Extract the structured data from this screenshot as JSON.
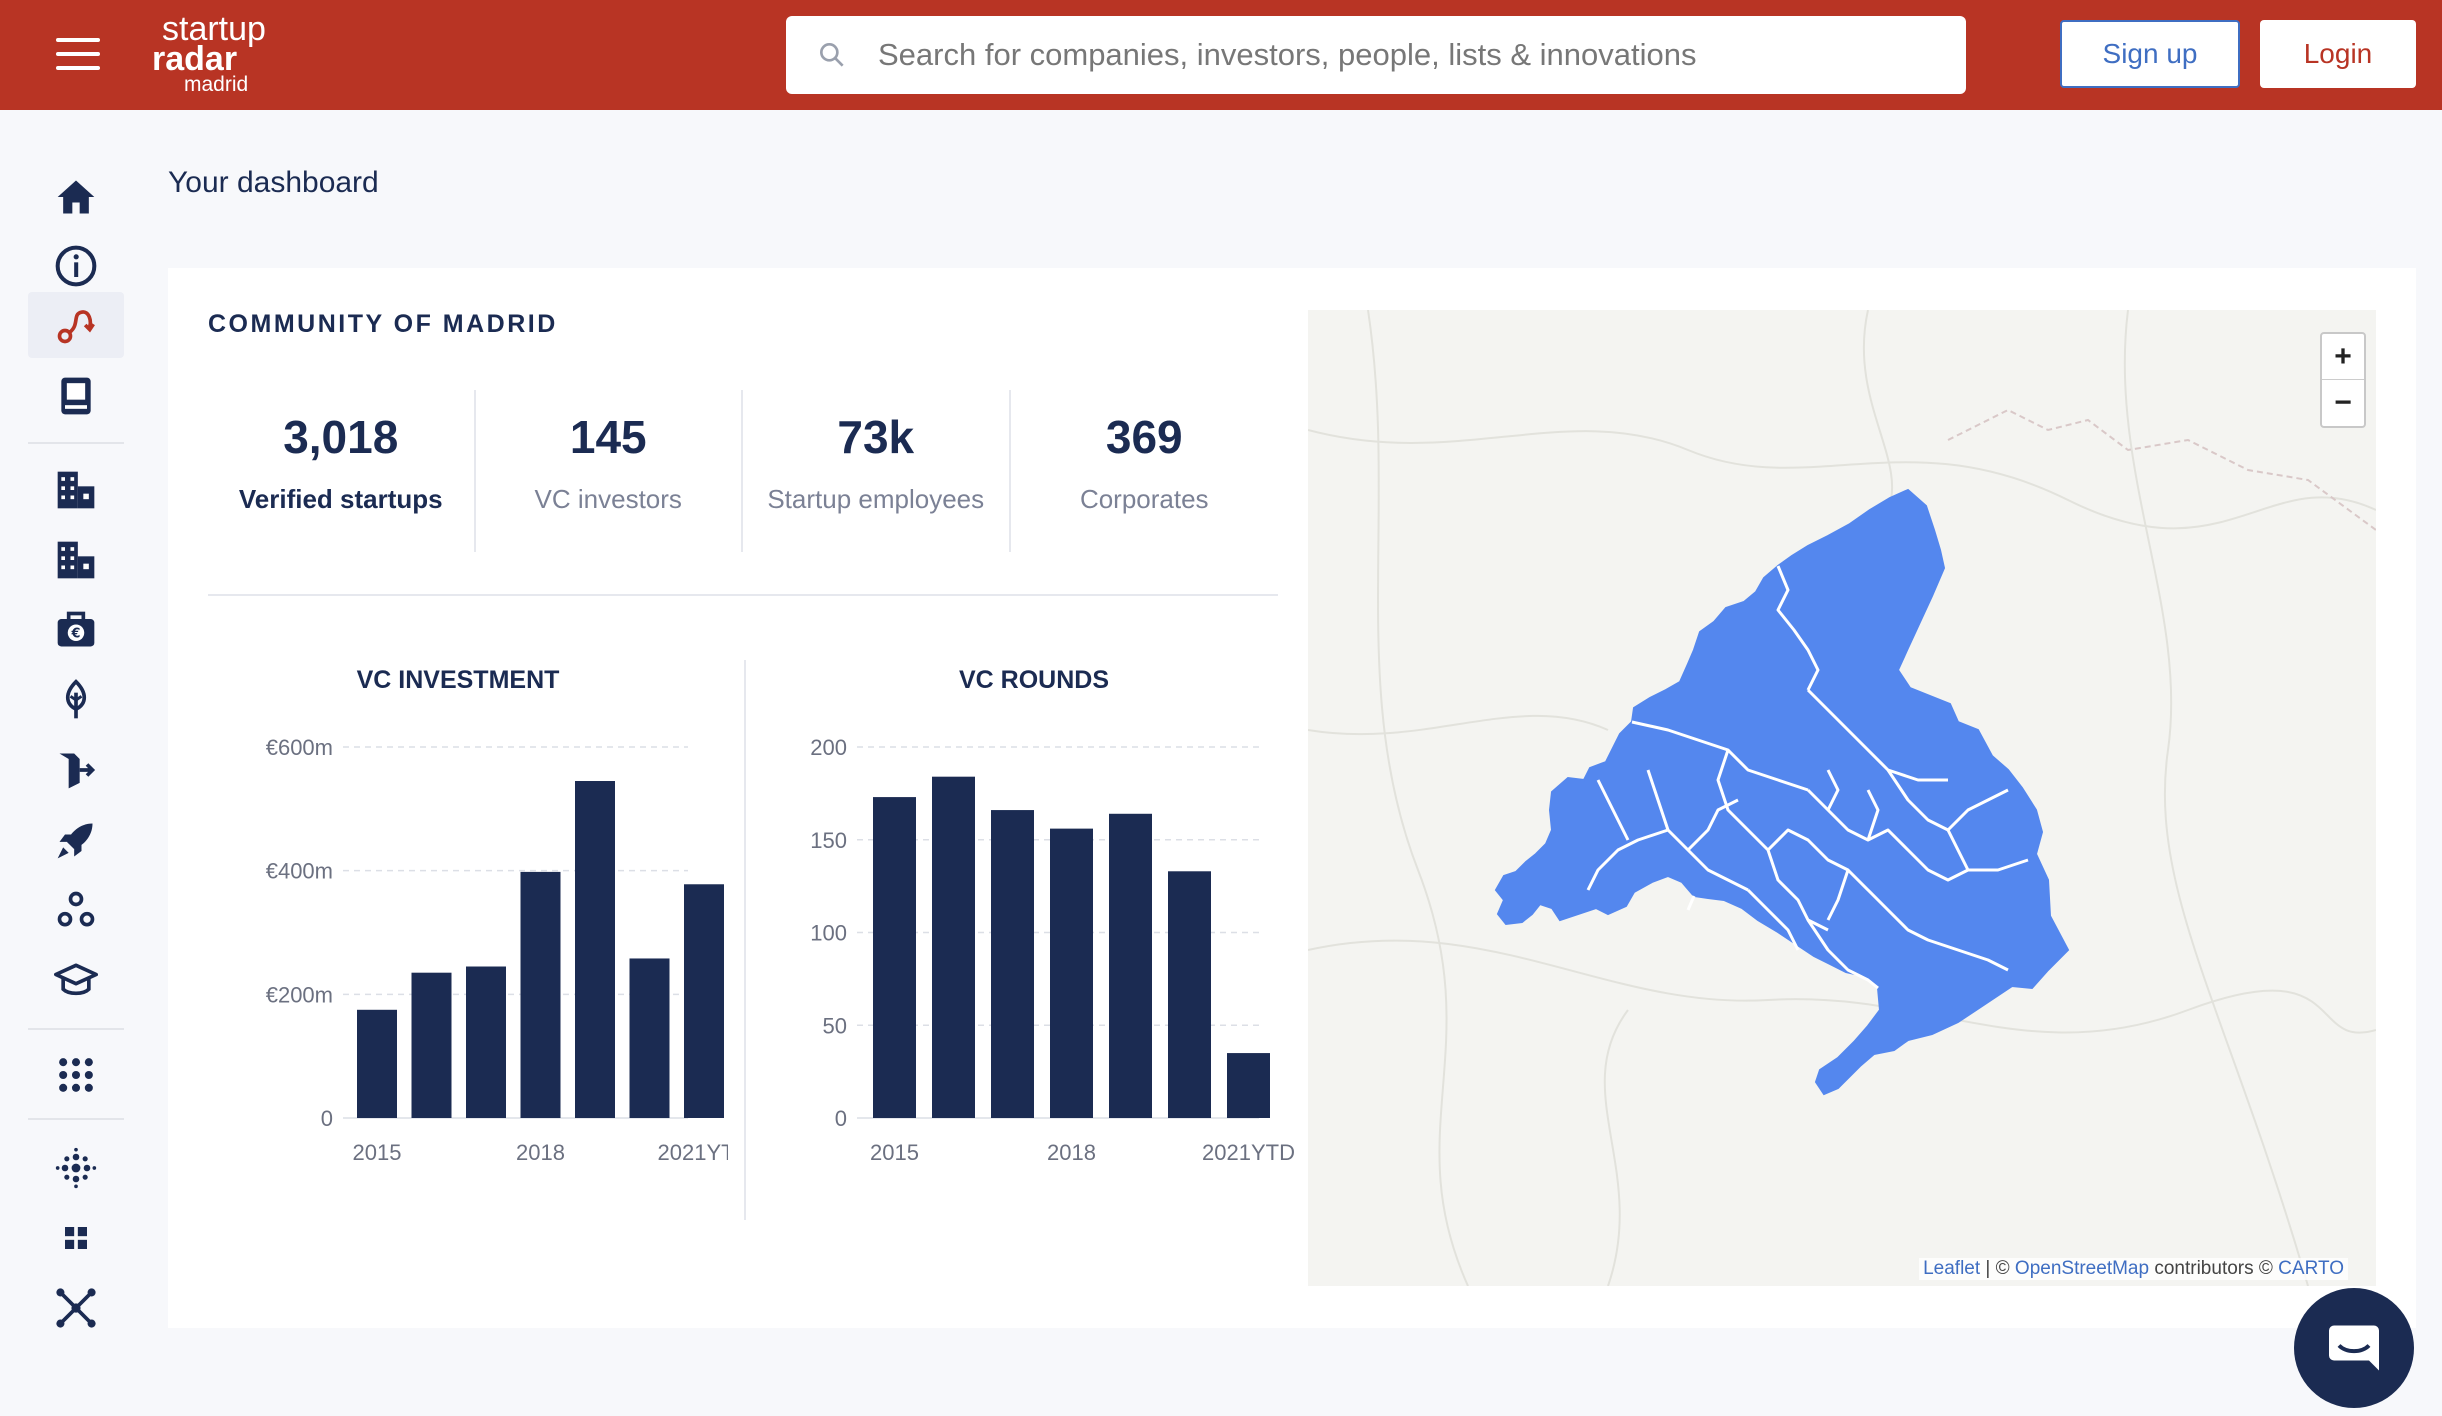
{
  "header": {
    "logo": {
      "line1": "startup",
      "line2": "radar",
      "line3": "madrid"
    },
    "search": {
      "placeholder": "Search for companies, investors, people, lists & innovations"
    },
    "signup_label": "Sign up",
    "login_label": "Login"
  },
  "sidebar": {
    "items": [
      {
        "icon": "home-icon",
        "active": false
      },
      {
        "icon": "info-icon",
        "active": false
      },
      {
        "icon": "route-icon",
        "active": true
      },
      {
        "icon": "book-icon",
        "active": false
      },
      {
        "icon": "companies-icon",
        "active": false
      },
      {
        "icon": "companies-alt-icon",
        "active": false
      },
      {
        "icon": "investor-wallet-icon",
        "active": false
      },
      {
        "icon": "sustainability-icon",
        "active": false
      },
      {
        "icon": "exit-icon",
        "active": false
      },
      {
        "icon": "rocket-icon",
        "active": false
      },
      {
        "icon": "network-dots-icon",
        "active": false
      },
      {
        "icon": "graduation-cap-icon",
        "active": false
      },
      {
        "icon": "apps-grid-icon",
        "active": false
      },
      {
        "icon": "dots-pattern-icon",
        "active": false
      },
      {
        "icon": "widgets-icon",
        "active": false
      },
      {
        "icon": "hub-icon",
        "active": false
      }
    ]
  },
  "page_title": "Your dashboard",
  "region_title": "COMMUNITY OF MADRID",
  "stats": [
    {
      "value": "3,018",
      "label": "Verified startups"
    },
    {
      "value": "145",
      "label": "VC investors"
    },
    {
      "value": "73k",
      "label": "Startup employees"
    },
    {
      "value": "369",
      "label": "Corporates"
    }
  ],
  "chart_data": [
    {
      "type": "bar",
      "title": "VC INVESTMENT",
      "categories": [
        "2015",
        "2016",
        "2017",
        "2018",
        "2019",
        "2020",
        "2021YTD"
      ],
      "tick_labels": [
        "2015",
        "2018",
        "2021YTD"
      ],
      "values": [
        175,
        235,
        245,
        398,
        545,
        258,
        378
      ],
      "y_ticks": [
        "0",
        "€200m",
        "€400m",
        "€600m"
      ],
      "ylim": [
        0,
        600
      ],
      "unit": "€m",
      "color": "#1b2b52"
    },
    {
      "type": "bar",
      "title": "VC ROUNDS",
      "categories": [
        "2015",
        "2016",
        "2017",
        "2018",
        "2019",
        "2020",
        "2021YTD"
      ],
      "tick_labels": [
        "2015",
        "2018",
        "2021YTD"
      ],
      "values": [
        173,
        184,
        166,
        156,
        164,
        133,
        35
      ],
      "y_ticks": [
        "0",
        "50",
        "100",
        "150",
        "200"
      ],
      "ylim": [
        0,
        200
      ],
      "color": "#1b2b52"
    }
  ],
  "map": {
    "zoom_in": "+",
    "zoom_out": "−",
    "attribution": {
      "leaflet": "Leaflet",
      "sep": "| ©",
      "osm": "OpenStreetMap",
      "contrib": "contributors ©",
      "carto": "CARTO"
    },
    "region_color": "#5487ee"
  },
  "colors": {
    "brand": "#b83424",
    "navy": "#1b2b52",
    "link": "#3f6ec2"
  }
}
